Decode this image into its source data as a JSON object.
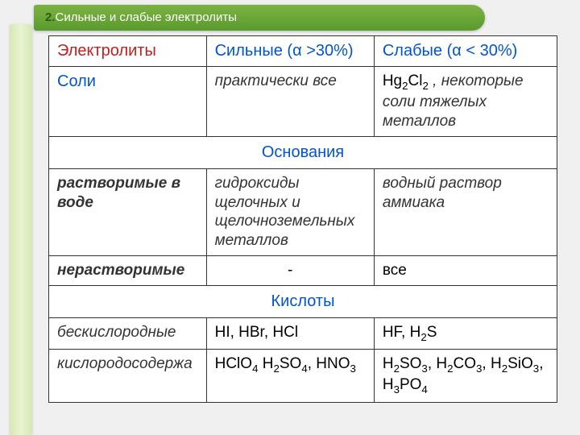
{
  "header": {
    "num": "2.",
    "title": "Сильные и слабые электролиты"
  },
  "table": {
    "col_widths": [
      "31%",
      "33%",
      "36%"
    ],
    "header": {
      "c1": "Электролиты",
      "c2": "Сильные (α >30%)",
      "c3": "Слабые  (α < 30%)"
    },
    "row_salts": {
      "cat": "Соли",
      "strong": "практически все",
      "weak_formula": "Hg₂Cl₂",
      "weak_rest": " , некоторые  соли тяжелых металлов"
    },
    "section_bases": "Основания",
    "row_soluble": {
      "cat": "растворимые в воде",
      "strong": "гидроксиды щелочных и щелочноземельных металлов",
      "weak": "водный раствор аммиака"
    },
    "row_insoluble": {
      "cat": "нерастворимые",
      "strong": "-",
      "weak": "все"
    },
    "section_acids": "Кислоты",
    "row_anoxic": {
      "cat": "бескислородные",
      "strong": "HI, HBr, HCl",
      "weak": "HF, H₂S"
    },
    "row_oxy": {
      "cat": "кислородосодержа",
      "strong": "HClO₄  H₂SO₄, HNO₃",
      "weak": "H₂SO₃, H₂CO₃, H₂SiO₃, H₃PO₄"
    }
  },
  "colors": {
    "header_band_top": "#7cb342",
    "header_band_bottom": "#5a9a2e",
    "sidebar_light": "#e8f4d0",
    "sidebar_dark": "#d6e8b4",
    "red": "#c02020",
    "blue": "#0055cc",
    "border": "#333333",
    "bg": "#f0f0f0"
  }
}
